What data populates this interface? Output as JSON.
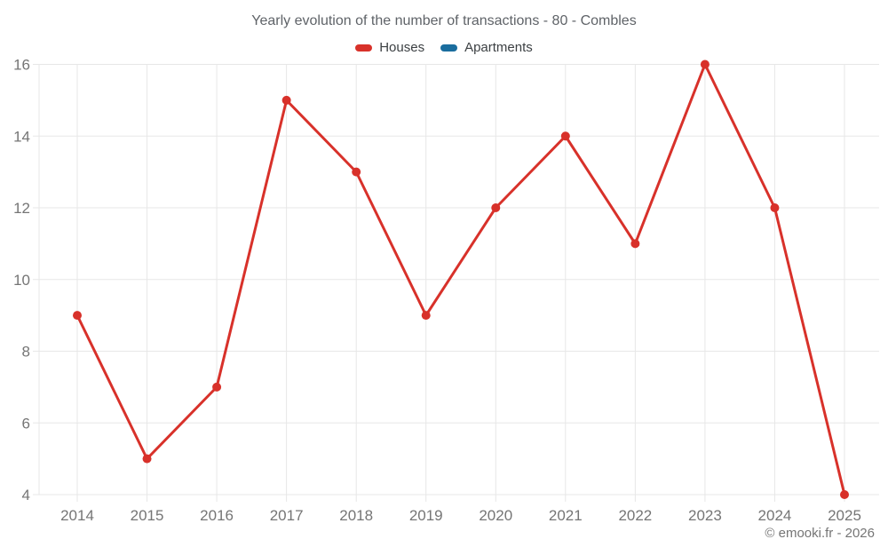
{
  "header": {
    "title": "Yearly evolution of the number of transactions - 80 - Combles"
  },
  "footer": {
    "copyright": "© emooki.fr - 2026"
  },
  "chart_data": {
    "type": "line",
    "title": "Yearly evolution of the number of transactions - 80 - Combles",
    "categories": [
      "2014",
      "2015",
      "2016",
      "2017",
      "2018",
      "2019",
      "2020",
      "2021",
      "2022",
      "2023",
      "2024",
      "2025"
    ],
    "series": [
      {
        "name": "Houses",
        "color": "#d8312a",
        "values": [
          9,
          5,
          7,
          15,
          13,
          9,
          12,
          14,
          11,
          16,
          12,
          4
        ]
      },
      {
        "name": "Apartments",
        "color": "#1a6d9e",
        "values": []
      }
    ],
    "xlabel": "",
    "ylabel": "",
    "ylim": [
      4,
      16
    ],
    "yticks": [
      4,
      6,
      8,
      10,
      12,
      14,
      16
    ],
    "grid": true,
    "legend_position": "top",
    "axis_label_color": "#757575",
    "gridline_color": "#e7e7e7",
    "marker_radius": 5,
    "line_width": 3
  }
}
